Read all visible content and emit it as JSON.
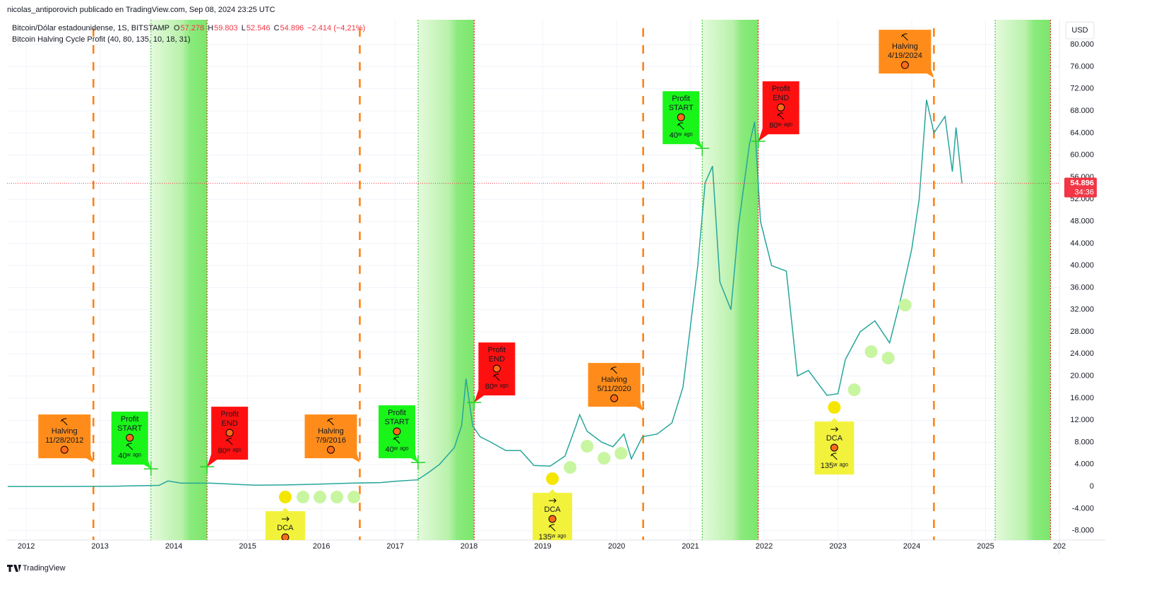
{
  "header": {
    "byline": "nicolas_antiporovich publicado en TradingView.com, Sep 08, 2024 23:25 UTC",
    "footer": "TradingView"
  },
  "chart_data": {
    "type": "line",
    "symbol": "Bitcoin/Dólar estadounidense, 1S, BITSTAMP",
    "ohlc": [
      {
        "label": "O",
        "value": "57.278"
      },
      {
        "label": "H",
        "value": "59.803"
      },
      {
        "label": "L",
        "value": "52.546"
      },
      {
        "label": "C",
        "value": "54.896"
      }
    ],
    "change": "−2.414 (−4,21%)",
    "indicator": "Bitcoin Halving Cycle Profit (40, 80, 135, 10, 18, 31)",
    "currency": "USD",
    "last_price": {
      "value": 54896,
      "label": "54.896"
    },
    "countdown": "34:36",
    "xlim": [
      2011.74,
      2026
    ],
    "xticks": [
      2012,
      2013,
      2014,
      2015,
      2016,
      2017,
      2018,
      2019,
      2020,
      2021,
      2022,
      2023,
      2024,
      2025,
      {
        "value": 2026,
        "label": "202"
      }
    ],
    "ylim": [
      -9700,
      84500
    ],
    "yticks": [
      {
        "value": 80000,
        "label": "80.000"
      },
      {
        "value": 76000,
        "label": "76.000"
      },
      {
        "value": 72000,
        "label": "72.000"
      },
      {
        "value": 68000,
        "label": "68.000"
      },
      {
        "value": 64000,
        "label": "64.000"
      },
      {
        "value": 60000,
        "label": "60.000"
      },
      {
        "value": 56000,
        "label": "56.000"
      },
      {
        "value": 52000,
        "label": "52.000"
      },
      {
        "value": 48000,
        "label": "48.000"
      },
      {
        "value": 44000,
        "label": "44.000"
      },
      {
        "value": 40000,
        "label": "40.000"
      },
      {
        "value": 36000,
        "label": "36.000"
      },
      {
        "value": 32000,
        "label": "32.000"
      },
      {
        "value": 28000,
        "label": "28.000"
      },
      {
        "value": 24000,
        "label": "24.000"
      },
      {
        "value": 20000,
        "label": "20.000"
      },
      {
        "value": 16000,
        "label": "16.000"
      },
      {
        "value": 12000,
        "label": "12.000"
      },
      {
        "value": 8000,
        "label": "8.000"
      },
      {
        "value": 4000,
        "label": "4.000"
      },
      0,
      {
        "value": -4000,
        "label": "-4.000"
      },
      {
        "value": -8000,
        "label": "-8.000"
      }
    ],
    "grid": true,
    "series": [
      {
        "name": "Bitcoin/Dólar estadounidense",
        "color": "#26a69a",
        "x": [
          2011.75,
          2012.5,
          2012.9,
          2013.2,
          2013.4,
          2013.8,
          2013.92,
          2014.1,
          2014.5,
          2014.9,
          2015.1,
          2015.5,
          2015.9,
          2016.4,
          2016.8,
          2017.0,
          2017.3,
          2017.45,
          2017.6,
          2017.8,
          2017.9,
          2017.96,
          2018.05,
          2018.15,
          2018.3,
          2018.5,
          2018.7,
          2018.88,
          2019.1,
          2019.3,
          2019.45,
          2019.5,
          2019.6,
          2019.8,
          2019.95,
          2020.1,
          2020.2,
          2020.35,
          2020.55,
          2020.75,
          2020.9,
          2021.0,
          2021.1,
          2021.2,
          2021.3,
          2021.4,
          2021.55,
          2021.65,
          2021.8,
          2021.87,
          2021.95,
          2022.1,
          2022.3,
          2022.45,
          2022.6,
          2022.85,
          2023.0,
          2023.1,
          2023.3,
          2023.5,
          2023.7,
          2023.85,
          2024.0,
          2024.1,
          2024.2,
          2024.3,
          2024.45,
          2024.55,
          2024.6,
          2024.68
        ],
        "values": [
          5,
          7,
          12,
          50,
          120,
          200,
          1000,
          600,
          600,
          350,
          230,
          280,
          400,
          600,
          700,
          950,
          1200,
          2500,
          4000,
          7000,
          11000,
          19500,
          11000,
          9000,
          8000,
          6500,
          6500,
          3800,
          3700,
          5500,
          11000,
          13000,
          10000,
          8000,
          7200,
          9500,
          5000,
          9000,
          9500,
          11500,
          18000,
          29000,
          40000,
          55000,
          58000,
          37000,
          32000,
          47000,
          62000,
          66000,
          48000,
          40000,
          39000,
          20000,
          21000,
          16500,
          16800,
          23000,
          28000,
          30000,
          26000,
          34000,
          43000,
          52000,
          70000,
          64000,
          67000,
          57000,
          65000,
          54896
        ]
      }
    ],
    "halving_lines": [
      2012.91,
      2016.52,
      2020.36,
      2024.3
    ],
    "profit_zones": [
      {
        "start": 2013.69,
        "end": 2014.45
      },
      {
        "start": 2017.31,
        "end": 2018.07
      },
      {
        "start": 2021.16,
        "end": 2021.92
      },
      {
        "start": 2025.13,
        "end": 2025.88
      }
    ],
    "dca_dots": {
      "color": "#c8f5a0",
      "x": [
        2015.75,
        2015.98,
        2016.21,
        2016.44,
        2019.37,
        2019.6,
        2019.83,
        2020.06,
        2023.22,
        2023.45,
        2023.68,
        2023.91
      ],
      "values": [
        -1917,
        -1917,
        -1917,
        -1917,
        3450,
        7284,
        5112,
        6006,
        17508,
        24409,
        23259,
        32843
      ]
    },
    "annotations": [
      {
        "kind": "halving",
        "color": "#ff8c1a",
        "lines": [
          "Halving",
          "11/28/2012"
        ],
        "x": 2012.91,
        "y": 4345
      },
      {
        "kind": "halving",
        "color": "#ff8c1a",
        "lines": [
          "Halving",
          "7/9/2016"
        ],
        "x": 2016.52,
        "y": 4345
      },
      {
        "kind": "halving",
        "color": "#ff8c1a",
        "lines": [
          "Halving",
          "5/11/2020"
        ],
        "x": 2020.36,
        "y": 13674
      },
      {
        "kind": "halving",
        "color": "#ff8c1a",
        "lines": [
          "Halving",
          "4/19/2024"
        ],
        "x": 2024.3,
        "y": 74000
      },
      {
        "kind": "start",
        "color": "#19f519",
        "lines": [
          "Profit",
          "START"
        ],
        "note": "40ʷ ᵃᵍᵒ",
        "x": 2013.69,
        "y": 3195
      },
      {
        "kind": "start",
        "color": "#19f519",
        "lines": [
          "Profit",
          "START"
        ],
        "note": "40ʷ ᵃᵍᵒ",
        "x": 2017.31,
        "y": 4345
      },
      {
        "kind": "start",
        "color": "#19f519",
        "lines": [
          "Profit",
          "START"
        ],
        "note": "40ʷ ᵃᵍᵒ",
        "x": 2021.16,
        "y": 61214
      },
      {
        "kind": "end",
        "color": "#ff1010",
        "lines": [
          "Profit",
          "END"
        ],
        "note": "80ʷ ᵃᵍᵒ",
        "x": 2014.45,
        "y": 3578
      },
      {
        "kind": "end",
        "color": "#ff1010",
        "lines": [
          "Profit",
          "END"
        ],
        "note": "80ʷ ᵃᵍᵒ",
        "x": 2018.07,
        "y": 15208
      },
      {
        "kind": "end",
        "color": "#ff1010",
        "lines": [
          "Profit",
          "END"
        ],
        "note": "80ʷ ᵃᵍᵒ",
        "x": 2021.92,
        "y": 62492
      },
      {
        "kind": "dca",
        "color": "#f2f23c",
        "lines": [
          "DCA"
        ],
        "note": "135ʷ ᵃᵍᵒ",
        "x": 2015.51,
        "y": -1917
      },
      {
        "kind": "dca",
        "color": "#f2f23c",
        "lines": [
          "DCA"
        ],
        "note": "135ʷ ᵃᵍᵒ",
        "x": 2019.13,
        "y": 1406
      },
      {
        "kind": "dca",
        "color": "#f2f23c",
        "lines": [
          "DCA"
        ],
        "note": "135ʷ ᵃᵍᵒ",
        "x": 2022.95,
        "y": 14313
      }
    ]
  }
}
